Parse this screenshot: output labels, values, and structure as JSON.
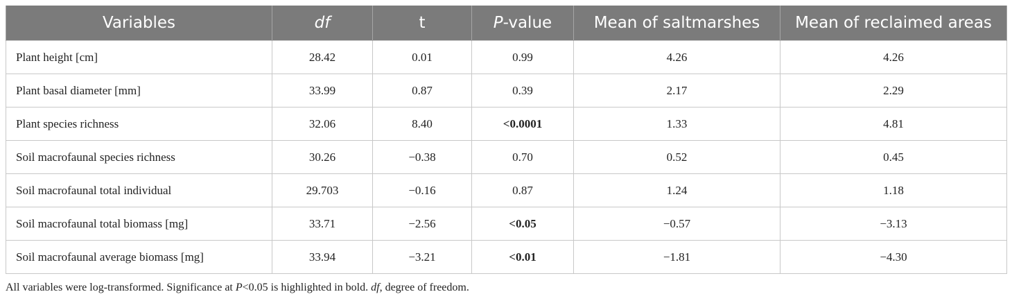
{
  "table": {
    "header": [
      [
        {
          "text": "Variables"
        }
      ],
      [
        {
          "text": "df",
          "italic": true
        }
      ],
      [
        {
          "text": "t"
        }
      ],
      [
        {
          "text": "P",
          "italic": true
        },
        {
          "text": "-value"
        }
      ],
      [
        {
          "text": "Mean of saltmarshes"
        }
      ],
      [
        {
          "text": "Mean of reclaimed areas"
        }
      ]
    ],
    "rows": [
      [
        {
          "text": "Plant height [cm]"
        },
        {
          "text": "28.42"
        },
        {
          "text": "0.01"
        },
        {
          "text": "0.99"
        },
        {
          "text": "4.26"
        },
        {
          "text": "4.26"
        }
      ],
      [
        {
          "text": "Plant basal diameter [mm]"
        },
        {
          "text": "33.99"
        },
        {
          "text": "0.87"
        },
        {
          "text": "0.39"
        },
        {
          "text": "2.17"
        },
        {
          "text": "2.29"
        }
      ],
      [
        {
          "text": "Plant species richness"
        },
        {
          "text": "32.06"
        },
        {
          "text": "8.40"
        },
        {
          "text": "<0.0001",
          "bold": true
        },
        {
          "text": "1.33"
        },
        {
          "text": "4.81"
        }
      ],
      [
        {
          "text": "Soil macrofaunal species richness"
        },
        {
          "text": "30.26"
        },
        {
          "text": "−0.38"
        },
        {
          "text": "0.70"
        },
        {
          "text": "0.52"
        },
        {
          "text": "0.45"
        }
      ],
      [
        {
          "text": "Soil macrofaunal total individual"
        },
        {
          "text": "29.703"
        },
        {
          "text": "−0.16"
        },
        {
          "text": "0.87"
        },
        {
          "text": "1.24"
        },
        {
          "text": "1.18"
        }
      ],
      [
        {
          "text": "Soil macrofaunal total biomass [mg]"
        },
        {
          "text": "33.71"
        },
        {
          "text": "−2.56"
        },
        {
          "text": "<0.05",
          "bold": true
        },
        {
          "text": "−0.57"
        },
        {
          "text": "−3.13"
        }
      ],
      [
        {
          "text": "Soil macrofaunal average biomass [mg]"
        },
        {
          "text": "33.94"
        },
        {
          "text": "−3.21"
        },
        {
          "text": "<0.01",
          "bold": true
        },
        {
          "text": "−1.81"
        },
        {
          "text": "−4.30"
        }
      ]
    ],
    "footnote": [
      {
        "text": "All variables were log-transformed. Significance at "
      },
      {
        "text": "P",
        "italic": true
      },
      {
        "text": "<0.05 is highlighted in bold. "
      },
      {
        "text": "df",
        "italic": true
      },
      {
        "text": ", degree of freedom."
      }
    ]
  }
}
